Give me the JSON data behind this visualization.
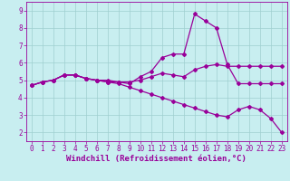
{
  "xlabel": "Windchill (Refroidissement éolien,°C)",
  "background_color": "#c8eef0",
  "grid_color": "#9fcfcf",
  "line_color": "#990099",
  "xlim": [
    -0.5,
    23.5
  ],
  "ylim": [
    1.5,
    9.5
  ],
  "xticks": [
    0,
    1,
    2,
    3,
    4,
    5,
    6,
    7,
    8,
    9,
    10,
    11,
    12,
    13,
    14,
    15,
    16,
    17,
    18,
    19,
    20,
    21,
    22,
    23
  ],
  "yticks": [
    2,
    3,
    4,
    5,
    6,
    7,
    8,
    9
  ],
  "line1_x": [
    0,
    1,
    2,
    3,
    4,
    5,
    6,
    7,
    8,
    9,
    10,
    11,
    12,
    13,
    14,
    15,
    16,
    17,
    18,
    19,
    20,
    21,
    22,
    23
  ],
  "line1_y": [
    4.7,
    4.9,
    5.0,
    5.3,
    5.3,
    5.1,
    5.0,
    5.0,
    4.9,
    4.9,
    5.0,
    5.2,
    5.4,
    5.3,
    5.2,
    5.6,
    5.8,
    5.9,
    5.8,
    5.8,
    5.8,
    5.8,
    5.8,
    5.8
  ],
  "line2_x": [
    0,
    1,
    2,
    3,
    4,
    5,
    6,
    7,
    8,
    9,
    10,
    11,
    12,
    13,
    14,
    15,
    16,
    17,
    18,
    19,
    20,
    21,
    22,
    23
  ],
  "line2_y": [
    4.7,
    4.9,
    5.0,
    5.3,
    5.3,
    5.1,
    5.0,
    4.9,
    4.9,
    4.8,
    5.2,
    5.5,
    6.3,
    6.5,
    6.5,
    8.8,
    8.4,
    8.0,
    5.9,
    4.8,
    4.8,
    4.8,
    4.8,
    4.8
  ],
  "line3_x": [
    0,
    1,
    2,
    3,
    4,
    5,
    6,
    7,
    8,
    9,
    10,
    11,
    12,
    13,
    14,
    15,
    16,
    17,
    18,
    19,
    20,
    21,
    22,
    23
  ],
  "line3_y": [
    4.7,
    4.9,
    5.0,
    5.3,
    5.3,
    5.1,
    5.0,
    4.9,
    4.8,
    4.6,
    4.4,
    4.2,
    4.0,
    3.8,
    3.6,
    3.4,
    3.2,
    3.0,
    2.9,
    3.3,
    3.5,
    3.3,
    2.8,
    2.0
  ],
  "marker": "D",
  "markersize": 2.0,
  "linewidth": 0.9,
  "tick_fontsize": 5.5,
  "xlabel_fontsize": 6.5
}
